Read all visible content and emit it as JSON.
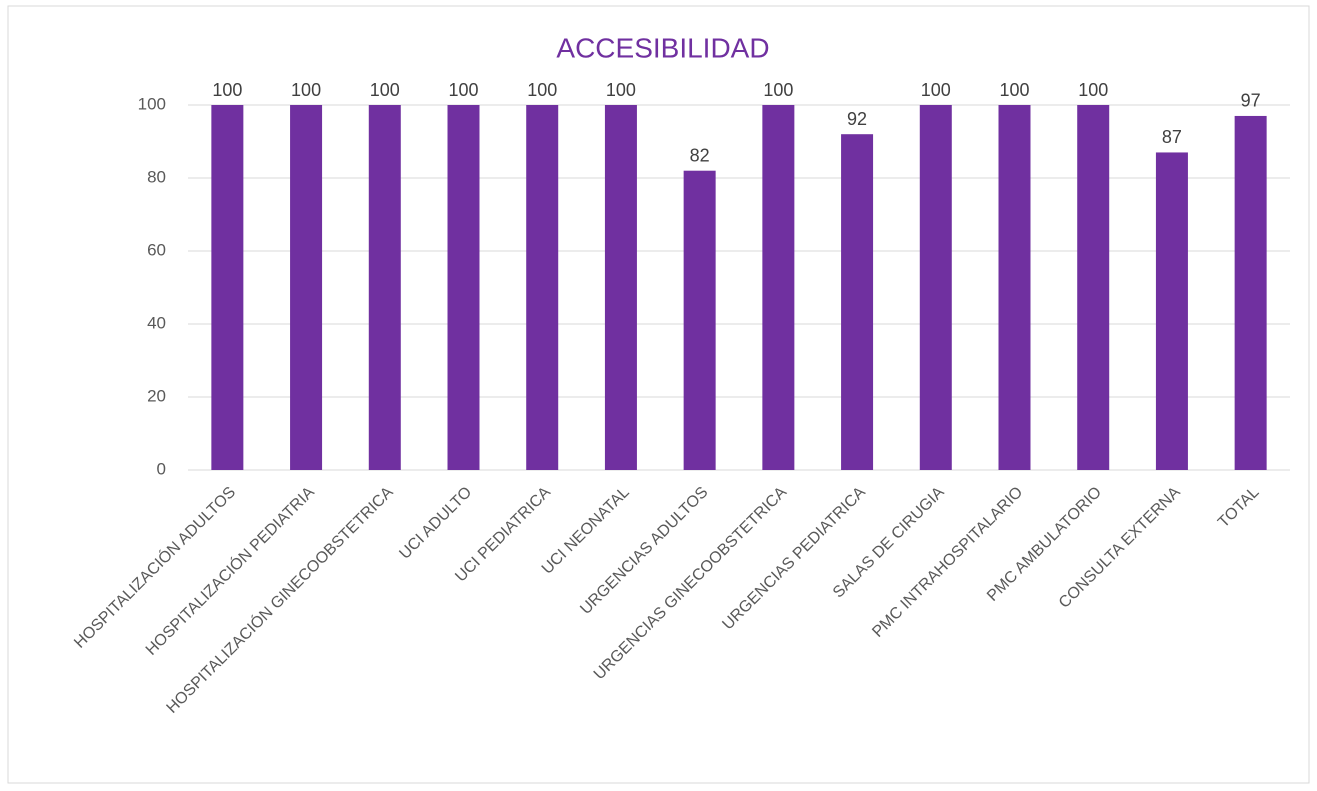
{
  "chart_data": {
    "type": "bar",
    "title": "ACCESIBILIDAD",
    "categories": [
      "HOSPITALIZACIÓN ADULTOS",
      "HOSPITALIZACIÓN PEDIATRIA",
      "HOSPITALIZACIÓN GINECOOBSTETRICA",
      "UCI ADULTO",
      "UCI PEDIATRICA",
      "UCI NEONATAL",
      "URGENCIAS ADULTOS",
      "URGENCIAS GINECOOBSTETRICA",
      "URGENCIAS PEDIATRICA",
      "SALAS DE CIRUGIA",
      "PMC INTRAHOSPITALARIO",
      "PMC AMBULATORIO",
      "CONSULTA EXTERNA",
      "TOTAL"
    ],
    "values": [
      100,
      100,
      100,
      100,
      100,
      100,
      82,
      100,
      92,
      100,
      100,
      100,
      87,
      97
    ],
    "color": "#7030a0",
    "ylim": [
      0,
      100
    ],
    "yticks": [
      0,
      20,
      40,
      60,
      80,
      100
    ],
    "grid": true
  }
}
